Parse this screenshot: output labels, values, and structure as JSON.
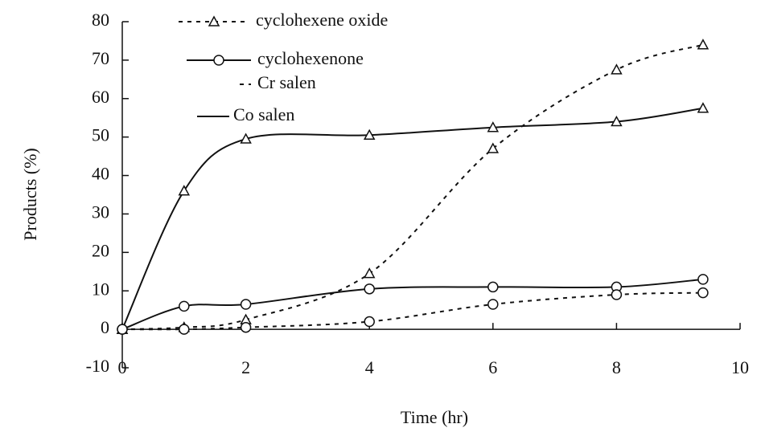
{
  "chart_data": {
    "type": "line",
    "x_label": "Time (hr)",
    "y_label": "Products (%)",
    "x": [
      0,
      1,
      2,
      4,
      6,
      8,
      9.4
    ],
    "series": [
      {
        "color": "#111111",
        "marker": "triangle",
        "dash": "solid",
        "values": [
          0,
          36,
          49.5,
          50.5,
          52.5,
          54,
          57.5
        ]
      },
      {
        "color": "#111111",
        "marker": "triangle",
        "dash": "dashed",
        "values": [
          0,
          0.5,
          2.5,
          14.5,
          47,
          67.5,
          74
        ]
      },
      {
        "color": "#111111",
        "marker": "circle",
        "dash": "solid",
        "values": [
          0,
          6,
          6.5,
          10.5,
          11,
          11,
          13
        ]
      },
      {
        "color": "#111111",
        "marker": "circle",
        "dash": "dashed",
        "values": [
          0,
          0,
          0.5,
          2,
          6.5,
          9,
          9.5
        ]
      }
    ],
    "legend": [
      {
        "label": "cyclohexene oxide",
        "marker": "triangle",
        "dash": "dashed"
      },
      {
        "label": "cyclohexenone",
        "marker": "circle",
        "dash": "solid"
      },
      {
        "label": "Cr salen",
        "marker": "none",
        "dash": "dashed"
      },
      {
        "label": "Co salen",
        "marker": "none",
        "dash": "solid"
      }
    ],
    "xlim": [
      0,
      10
    ],
    "xticks": [
      0,
      2,
      4,
      6,
      8,
      10
    ],
    "ylim": [
      -10,
      80
    ],
    "yticks": [
      -10,
      0,
      10,
      20,
      30,
      40,
      50,
      60,
      70,
      80
    ],
    "grid": false
  }
}
